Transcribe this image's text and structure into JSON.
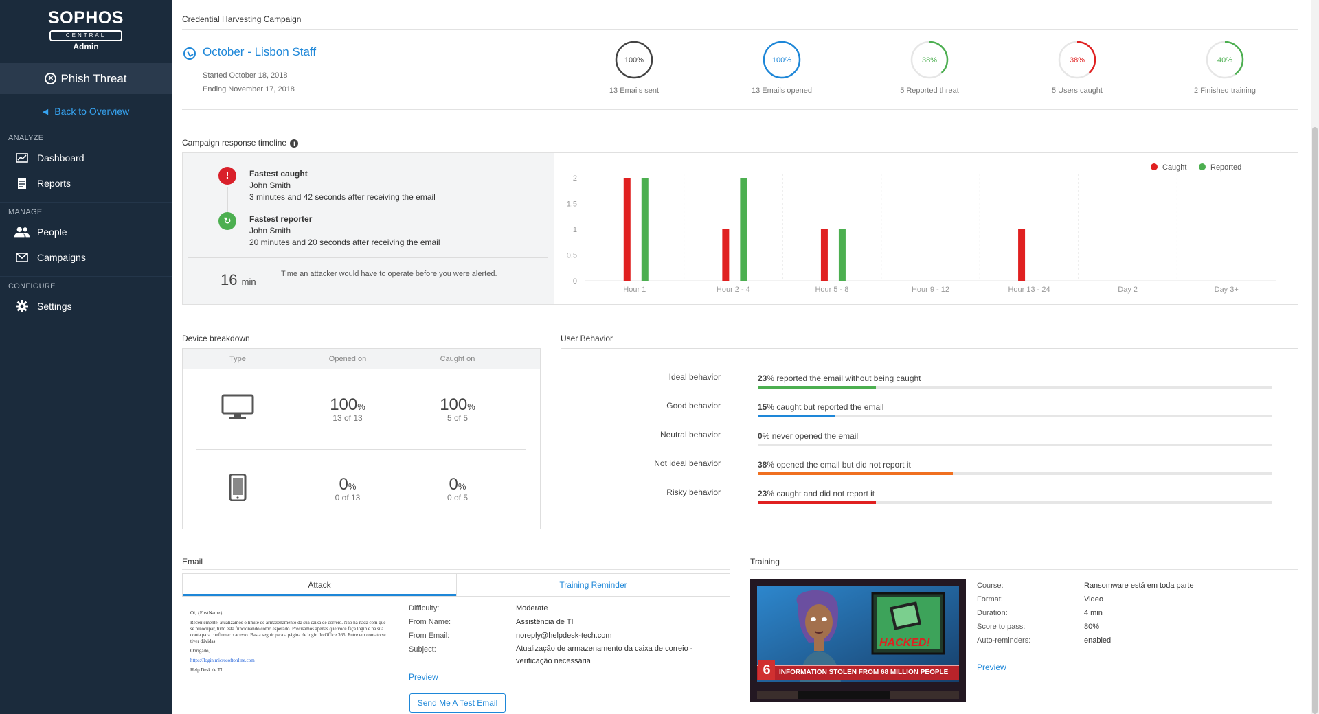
{
  "sidebar": {
    "brand": "SOPHOS",
    "brand_sub": "CENTRAL",
    "brand_role": "Admin",
    "product": "Phish Threat",
    "back": "Back to Overview",
    "sections": {
      "analyze": "ANALYZE",
      "manage": "MANAGE",
      "configure": "CONFIGURE"
    },
    "items": {
      "dashboard": "Dashboard",
      "reports": "Reports",
      "people": "People",
      "campaigns": "Campaigns",
      "settings": "Settings"
    }
  },
  "campaign": {
    "section_title": "Credential Harvesting Campaign",
    "name": "October - Lisbon Staff",
    "started": "Started October 18, 2018",
    "ending": "Ending November 17, 2018",
    "stats": [
      {
        "value": "100%",
        "caption": "13 Emails sent",
        "fraction": 1.0,
        "color": "#444444"
      },
      {
        "value": "100%",
        "caption": "13 Emails opened",
        "fraction": 1.0,
        "color": "#1e87d8"
      },
      {
        "value": "38%",
        "caption": "5 Reported threat",
        "fraction": 0.38,
        "color": "#4caf50"
      },
      {
        "value": "38%",
        "caption": "5 Users caught",
        "fraction": 0.38,
        "color": "#e02020"
      },
      {
        "value": "40%",
        "caption": "2 Finished training",
        "fraction": 0.4,
        "color": "#4caf50"
      }
    ]
  },
  "timeline": {
    "title": "Campaign response timeline",
    "fastest_caught_label": "Fastest caught",
    "fastest_caught_name": "John Smith",
    "fastest_caught_time": "3 minutes and 42 seconds after receiving the email",
    "fastest_reporter_label": "Fastest reporter",
    "fastest_reporter_name": "John Smith",
    "fastest_reporter_time": "20 minutes and 20 seconds after receiving the email",
    "minutes_value": "16",
    "minutes_unit": "min",
    "minutes_note": "Time an attacker would have to operate before you were alerted."
  },
  "chart_data": {
    "type": "bar",
    "categories": [
      "Hour 1",
      "Hour 2 - 4",
      "Hour 5 - 8",
      "Hour 9 - 12",
      "Hour 13 - 24",
      "Day 2",
      "Day 3+"
    ],
    "series": [
      {
        "name": "Caught",
        "color": "#e02020",
        "values": [
          2,
          1,
          1,
          0,
          1,
          0,
          0
        ]
      },
      {
        "name": "Reported",
        "color": "#4caf50",
        "values": [
          2,
          2,
          1,
          0,
          0,
          0,
          0
        ]
      }
    ],
    "yticks": [
      "0",
      "0.5",
      "1",
      "1.5",
      "2"
    ],
    "ylim": [
      0,
      2
    ],
    "legend": "top-right",
    "grid": "vertical dashed"
  },
  "devices": {
    "title": "Device breakdown",
    "headers": [
      "Type",
      "Opened on",
      "Caught on"
    ],
    "rows": [
      {
        "type": "desktop-icon",
        "opened": "100",
        "opened_sub": "13 of 13",
        "caught": "100",
        "caught_sub": "5 of 5"
      },
      {
        "type": "mobile-icon",
        "opened": "0",
        "opened_sub": "0 of 13",
        "caught": "0",
        "caught_sub": "0 of 5"
      }
    ],
    "pct": "%"
  },
  "behavior": {
    "title": "User Behavior",
    "rows": [
      {
        "name": "Ideal behavior",
        "pct": "23",
        "text": "% reported the email without being caught",
        "fraction": 0.23,
        "color": "#4caf50"
      },
      {
        "name": "Good behavior",
        "pct": "15",
        "text": "% caught but reported the email",
        "fraction": 0.15,
        "color": "#1e87d8"
      },
      {
        "name": "Neutral behavior",
        "pct": "0",
        "text": "% never opened the email",
        "fraction": 0.0,
        "color": "#999999"
      },
      {
        "name": "Not ideal behavior",
        "pct": "38",
        "text": "% opened the email but did not report it",
        "fraction": 0.38,
        "color": "#f07020"
      },
      {
        "name": "Risky behavior",
        "pct": "23",
        "text": "% caught and did not report it",
        "fraction": 0.23,
        "color": "#e02020"
      }
    ]
  },
  "email": {
    "title": "Email",
    "tab_attack": "Attack",
    "tab_reminder": "Training Reminder",
    "preview_greeting": "Oi, {FirstName},",
    "preview_body": "Recentemente, atualizamos o limite de armazenamento da sua caixa de correio. Não há nada com que se preocupar, tudo está funcionando como esperado. Precisamos apenas que você faça login e na sua conta para confirmar o acesso. Basta seguir para a página de login do Office 365. Entre em contato se tiver dúvidas!",
    "preview_thanks": "Obrigado,",
    "preview_link": "https://login.microsoftonline.com",
    "preview_sign": "Help Desk de TI",
    "fields": {
      "difficulty_label": "Difficulty:",
      "difficulty": "Moderate",
      "from_name_label": "From Name:",
      "from_name": "Assistência de TI",
      "from_email_label": "From Email:",
      "from_email": "noreply@helpdesk-tech.com",
      "subject_label": "Subject:",
      "subject": "Atualização de armazenamento da caixa de correio - verificação necessária"
    },
    "preview": "Preview",
    "send_test": "Send Me A Test Email"
  },
  "training": {
    "title": "Training",
    "course_label": "Course:",
    "course": "Ransomware está em toda parte",
    "format_label": "Format:",
    "format": "Video",
    "duration_label": "Duration:",
    "duration": "4 min",
    "score_label": "Score to pass:",
    "score": "80%",
    "reminders_label": "Auto-reminders:",
    "reminders": "enabled",
    "preview": "Preview",
    "video_banner": "INFORMATION STOLEN FROM 68 MILLION PEOPLE",
    "video_hacked": "HACKED!",
    "video_channel": "6"
  }
}
